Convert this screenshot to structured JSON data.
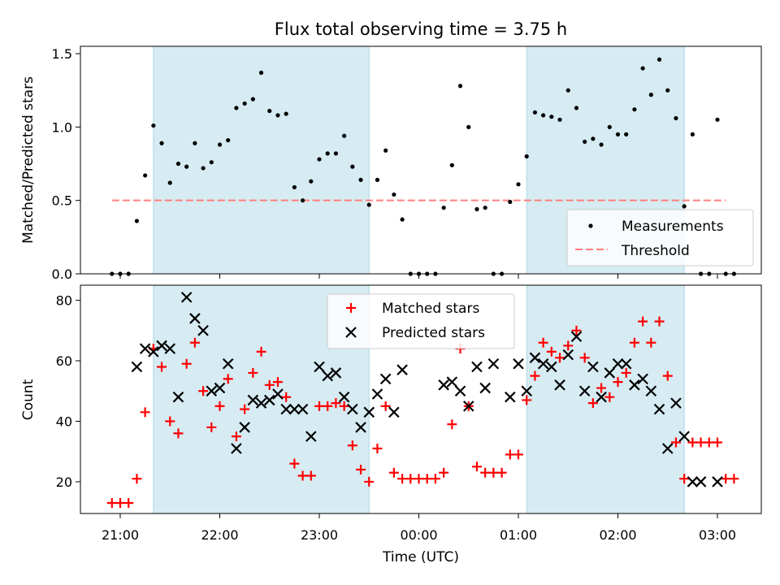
{
  "figure": {
    "title": "Flux total observing time = 3.75 h"
  },
  "colors": {
    "shade": "#add8e6",
    "measurement": "#000000",
    "threshold": "#ff7f7f",
    "matched": "#ff0000",
    "predicted": "#000000"
  },
  "chart_data": [
    {
      "type": "scatter",
      "name": "ratio",
      "ylabel": "Matched/Predicted stars",
      "xlabel": "",
      "ylim": [
        0,
        1.55
      ],
      "yticks": [
        0.0,
        0.5,
        1.0,
        1.5
      ],
      "ytick_labels": [
        "0.0",
        "0.5",
        "1.0",
        "1.5"
      ],
      "grid": false,
      "legend": "lower right",
      "shaded_intervals": [
        [
          "21:20",
          "23:30"
        ],
        [
          "01:05",
          "02:40"
        ]
      ],
      "threshold": {
        "name": "Threshold",
        "y": 0.5,
        "x_range": [
          "20:55",
          "03:05"
        ]
      },
      "series": [
        {
          "name": "Measurements",
          "x": [
            "20:55",
            "21:00",
            "21:05",
            "21:10",
            "21:15",
            "21:20",
            "21:25",
            "21:30",
            "21:35",
            "21:40",
            "21:45",
            "21:50",
            "21:55",
            "22:00",
            "22:05",
            "22:10",
            "22:15",
            "22:20",
            "22:25",
            "22:30",
            "22:35",
            "22:40",
            "22:45",
            "22:50",
            "22:55",
            "23:00",
            "23:05",
            "23:10",
            "23:15",
            "23:20",
            "23:25",
            "23:30",
            "23:35",
            "23:40",
            "23:45",
            "23:50",
            "23:55",
            "00:00",
            "00:05",
            "00:10",
            "00:15",
            "00:20",
            "00:25",
            "00:30",
            "00:35",
            "00:40",
            "00:45",
            "00:50",
            "00:55",
            "01:00",
            "01:05",
            "01:10",
            "01:15",
            "01:20",
            "01:25",
            "01:30",
            "01:35",
            "01:40",
            "01:45",
            "01:50",
            "01:55",
            "02:00",
            "02:05",
            "02:10",
            "02:15",
            "02:20",
            "02:25",
            "02:30",
            "02:35",
            "02:40",
            "02:45",
            "02:50",
            "02:55",
            "03:00",
            "03:05",
            "03:10"
          ],
          "y": [
            0,
            0,
            0,
            0.36,
            0.67,
            1.01,
            0.89,
            0.62,
            0.75,
            0.73,
            0.89,
            0.72,
            0.76,
            0.88,
            0.91,
            1.13,
            1.16,
            1.19,
            1.37,
            1.11,
            1.08,
            1.09,
            0.59,
            0.5,
            0.63,
            0.78,
            0.82,
            0.82,
            0.94,
            0.73,
            0.64,
            0.47,
            0.64,
            0.84,
            0.54,
            0.37,
            0,
            0,
            0,
            0,
            0.45,
            0.74,
            1.28,
            1.0,
            0.44,
            0.45,
            0,
            0,
            0.49,
            0.61,
            0.8,
            1.1,
            1.08,
            1.07,
            1.05,
            1.25,
            1.13,
            0.9,
            0.92,
            0.88,
            1.0,
            0.95,
            0.95,
            1.12,
            1.4,
            1.22,
            1.46,
            1.25,
            1.06,
            0.46,
            0.95,
            0,
            0,
            1.05,
            0,
            0
          ]
        }
      ]
    },
    {
      "type": "scatter",
      "name": "counts",
      "xlabel": "Time (UTC)",
      "ylabel": "Count",
      "ylim": [
        9.5,
        85
      ],
      "yticks": [
        20,
        40,
        60,
        80
      ],
      "ytick_labels": [
        "20",
        "40",
        "60",
        "80"
      ],
      "xticks": [
        "21:00",
        "22:00",
        "23:00",
        "00:00",
        "01:00",
        "02:00",
        "03:00"
      ],
      "grid": false,
      "legend": "upper center",
      "shaded_intervals": [
        [
          "21:20",
          "23:30"
        ],
        [
          "01:05",
          "02:40"
        ]
      ],
      "series": [
        {
          "name": "Matched stars",
          "marker": "plus",
          "x": [
            "20:55",
            "21:00",
            "21:05",
            "21:10",
            "21:15",
            "21:20",
            "21:25",
            "21:30",
            "21:35",
            "21:40",
            "21:45",
            "21:50",
            "21:55",
            "22:00",
            "22:05",
            "22:10",
            "22:15",
            "22:20",
            "22:25",
            "22:30",
            "22:35",
            "22:40",
            "22:45",
            "22:50",
            "22:55",
            "23:00",
            "23:05",
            "23:10",
            "23:15",
            "23:20",
            "23:25",
            "23:30",
            "23:35",
            "23:40",
            "23:45",
            "23:50",
            "23:55",
            "00:00",
            "00:05",
            "00:10",
            "00:15",
            "00:20",
            "00:25",
            "00:30",
            "00:35",
            "00:40",
            "00:45",
            "00:50",
            "00:55",
            "01:00",
            "01:05",
            "01:10",
            "01:15",
            "01:20",
            "01:25",
            "01:30",
            "01:35",
            "01:40",
            "01:45",
            "01:50",
            "01:55",
            "02:00",
            "02:05",
            "02:10",
            "02:15",
            "02:20",
            "02:25",
            "02:30",
            "02:35",
            "02:40",
            "02:45",
            "02:50",
            "02:55",
            "03:00",
            "03:05",
            "03:10"
          ],
          "y": [
            13,
            13,
            13,
            21,
            43,
            64,
            58,
            40,
            36,
            59,
            66,
            50,
            38,
            45,
            54,
            35,
            44,
            56,
            63,
            52,
            53,
            48,
            26,
            22,
            22,
            45,
            45,
            46,
            45,
            32,
            24,
            20,
            31,
            45,
            23,
            21,
            21,
            21,
            21,
            21,
            23,
            39,
            64,
            45,
            25,
            23,
            23,
            23,
            29,
            29,
            47,
            55,
            66,
            63,
            61,
            65,
            70,
            61,
            46,
            51,
            48,
            53,
            56,
            66,
            73,
            66,
            73,
            55,
            33,
            21,
            33,
            33,
            33,
            33,
            21,
            21
          ]
        },
        {
          "name": "Predicted stars",
          "marker": "x",
          "x": [
            "21:10",
            "21:15",
            "21:20",
            "21:25",
            "21:30",
            "21:35",
            "21:40",
            "21:45",
            "21:50",
            "21:55",
            "22:00",
            "22:05",
            "22:10",
            "22:15",
            "22:20",
            "22:25",
            "22:30",
            "22:35",
            "22:40",
            "22:45",
            "22:50",
            "22:55",
            "23:00",
            "23:05",
            "23:10",
            "23:15",
            "23:20",
            "23:25",
            "23:30",
            "23:35",
            "23:40",
            "23:45",
            "23:50",
            "00:15",
            "00:20",
            "00:25",
            "00:30",
            "00:35",
            "00:40",
            "00:45",
            "00:55",
            "01:00",
            "01:05",
            "01:10",
            "01:15",
            "01:20",
            "01:25",
            "01:30",
            "01:35",
            "01:40",
            "01:45",
            "01:50",
            "01:55",
            "02:00",
            "02:05",
            "02:10",
            "02:15",
            "02:20",
            "02:25",
            "02:30",
            "02:35",
            "02:40",
            "02:45",
            "02:50",
            "03:00"
          ],
          "y": [
            58,
            64,
            63,
            65,
            64,
            48,
            81,
            74,
            70,
            50,
            51,
            59,
            31,
            38,
            47,
            46,
            47,
            49,
            44,
            44,
            44,
            35,
            58,
            55,
            56,
            48,
            44,
            38,
            43,
            49,
            54,
            43,
            57,
            52,
            53,
            50,
            45,
            58,
            51,
            59,
            48,
            59,
            50,
            61,
            59,
            58,
            52,
            62,
            68,
            50,
            58,
            48,
            56,
            59,
            59,
            52,
            54,
            50,
            44,
            31,
            46,
            35,
            20,
            20,
            20
          ]
        }
      ]
    }
  ]
}
